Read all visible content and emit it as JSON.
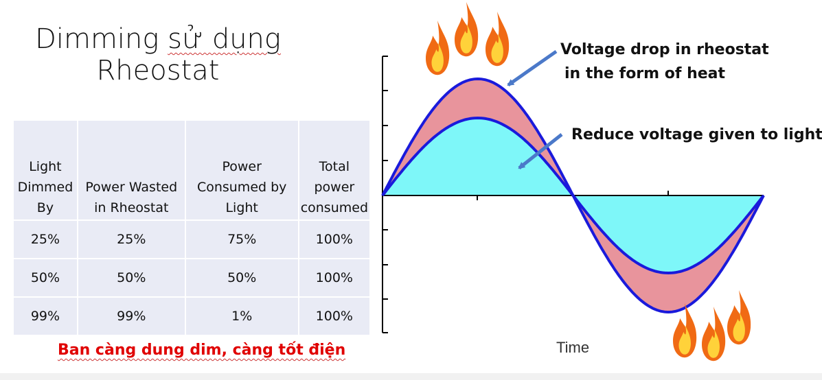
{
  "title": {
    "line1_prefix": "Dimming ",
    "line1_vn": "sử dụng",
    "line2": "Rheostat"
  },
  "table": {
    "headers": [
      "Light Dimmed By",
      "Power Wasted in Rheostat",
      "Power Consumed by Light",
      "Total power consumed"
    ],
    "rows": [
      [
        "25%",
        "25%",
        "75%",
        "100%"
      ],
      [
        "50%",
        "50%",
        "50%",
        "100%"
      ],
      [
        "99%",
        "99%",
        "1%",
        "100%"
      ]
    ]
  },
  "note": "Ban càng dung dim, càng tốt điện",
  "diagram": {
    "annotation_heat_line1": "Voltage drop in rheostat",
    "annotation_heat_line2": "in the form of heat",
    "annotation_light": "Reduce voltage given to light",
    "axis_label": "Time",
    "colors": {
      "wasted": "#e8949c",
      "light": "#7ef7f9",
      "wave": "#1a1adb",
      "arrow": "#4b79c9"
    }
  }
}
